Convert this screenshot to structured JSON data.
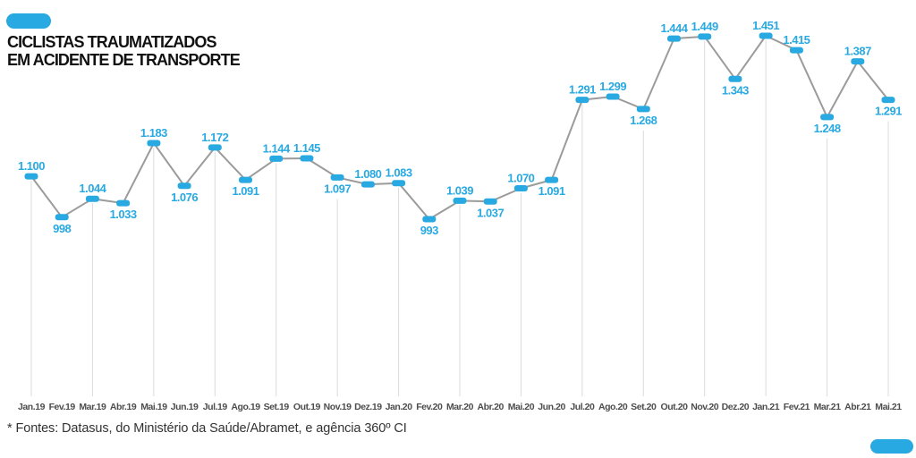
{
  "title": {
    "line1": "CICLISTAS TRAUMATIZADOS",
    "line2": "EM ACIDENTE DE TRANSPORTE"
  },
  "footer": {
    "source": "* Fontes: Datasus, do Ministério da Saúde/Abramet, e agência 360º CI"
  },
  "decorations": {
    "top_left_pill_color": "#29A9E1",
    "bottom_right_pill_color": "#29A9E1"
  },
  "chart_data": {
    "type": "line",
    "title": "CICLISTAS TRAUMATIZADOS EM ACIDENTE DE TRANSPORTE",
    "xlabel": "",
    "ylabel": "",
    "ylim": [
      950,
      1500
    ],
    "legend": "none",
    "grid": "alternating vertical drop lines from points to baseline",
    "categories": [
      "Jan.19",
      "Fev.19",
      "Mar.19",
      "Abr.19",
      "Mai.19",
      "Jun.19",
      "Jul.19",
      "Ago.19",
      "Set.19",
      "Out.19",
      "Nov.19",
      "Dez.19",
      "Jan.20",
      "Fev.20",
      "Mar.20",
      "Abr.20",
      "Mai.20",
      "Jun.20",
      "Jul.20",
      "Ago.20",
      "Set.20",
      "Out.20",
      "Nov.20",
      "Dez.20",
      "Jan.21",
      "Fev.21",
      "Mar.21",
      "Abr.21",
      "Mai.21"
    ],
    "values": [
      1100,
      998,
      1044,
      1033,
      1183,
      1076,
      1172,
      1091,
      1144,
      1145,
      1097,
      1080,
      1083,
      993,
      1039,
      1037,
      1070,
      1091,
      1291,
      1299,
      1268,
      1444,
      1449,
      1343,
      1451,
      1415,
      1248,
      1387,
      1291
    ],
    "value_labels": [
      "1.100",
      "998",
      "1.044",
      "1.033",
      "1.183",
      "1.076",
      "1.172",
      "1.091",
      "1.144",
      "1.145",
      "1.097",
      "1.080",
      "1.083",
      "993",
      "1.039",
      "1.037",
      "1.070",
      "1.091",
      "1.291",
      "1.299",
      "1.268",
      "1.444",
      "1.449",
      "1.343",
      "1.451",
      "1.415",
      "1.248",
      "1.387",
      "1.291"
    ],
    "label_side": [
      "up",
      "down",
      "up",
      "down",
      "up",
      "down",
      "up",
      "down",
      "up",
      "up",
      "down",
      "up",
      "up",
      "down",
      "up",
      "down",
      "up",
      "down",
      "up",
      "up",
      "down",
      "up",
      "up",
      "down",
      "up",
      "up",
      "down",
      "up",
      "down"
    ],
    "colors": {
      "accent_blue": "#29A9E1",
      "series_line": "#9B9B9B",
      "drop_line": "#DBDBDB",
      "month_label": "#4D4D4D",
      "value_label": "#29A9E1"
    }
  }
}
